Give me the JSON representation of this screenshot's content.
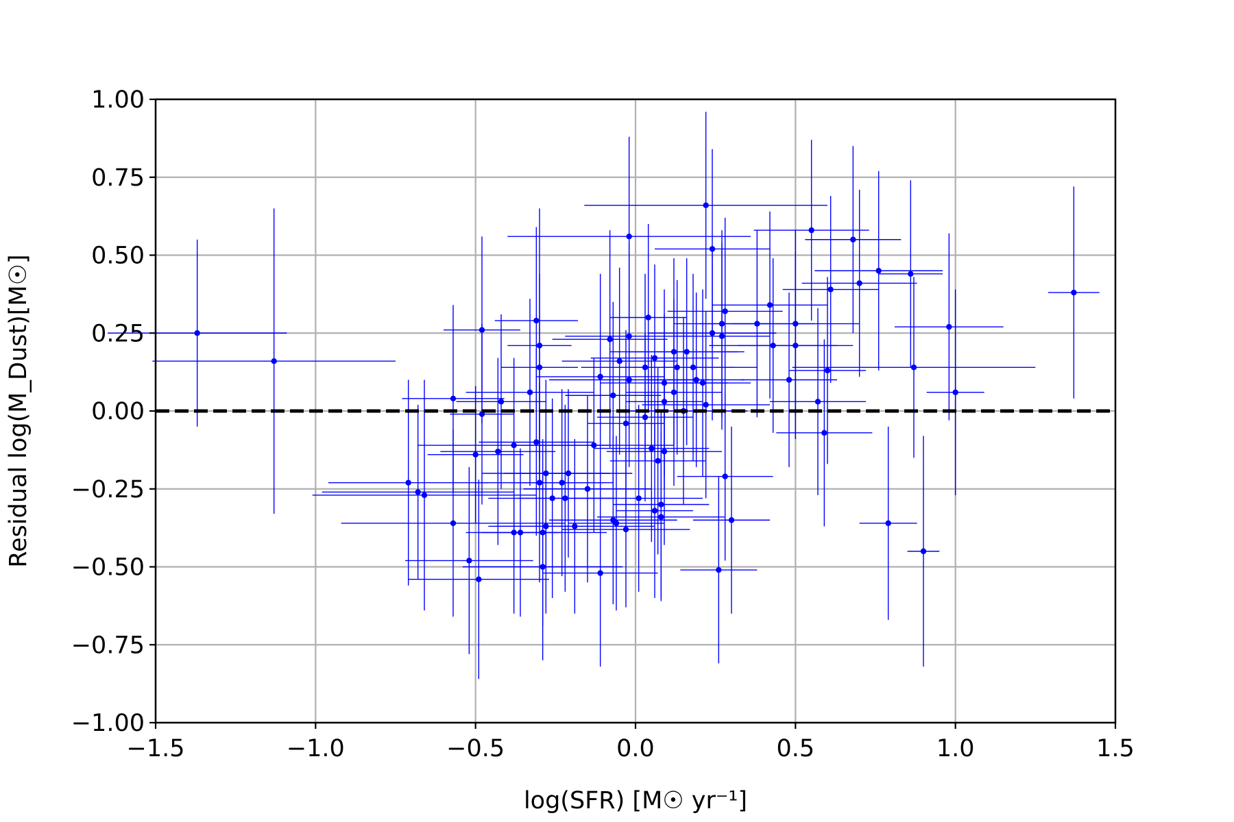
{
  "chart_data": {
    "type": "scatter",
    "xlabel": "log(SFR) [M☉ yr⁻¹]",
    "ylabel": "Residual log(M_Dust)[M☉]",
    "xlim": [
      -1.5,
      1.5
    ],
    "ylim": [
      -1.0,
      1.0
    ],
    "xticks": [
      -1.5,
      -1.0,
      -0.5,
      0.0,
      0.5,
      1.0,
      1.5
    ],
    "yticks": [
      -1.0,
      -0.75,
      -0.5,
      -0.25,
      0.0,
      0.25,
      0.5,
      0.75,
      1.0
    ],
    "xtick_labels": [
      "−1.5",
      "−1.0",
      "−0.5",
      "0.0",
      "0.5",
      "1.0",
      "1.5"
    ],
    "ytick_labels": [
      "−1.00",
      "−0.75",
      "−0.50",
      "−0.25",
      "0.00",
      "0.25",
      "0.50",
      "0.75",
      "1.00"
    ],
    "grid": true,
    "point_color": "#0000ff",
    "reference_line": {
      "y": 0.0,
      "style": "dashed",
      "color": "#000000"
    },
    "points": [
      {
        "x": -1.37,
        "y": 0.25,
        "xerr": 0.28,
        "yerr": 0.3
      },
      {
        "x": -1.13,
        "y": 0.16,
        "xerr": 0.38,
        "yerr": 0.49
      },
      {
        "x": -0.71,
        "y": -0.23,
        "xerr": 0.25,
        "yerr": 0.33
      },
      {
        "x": -0.68,
        "y": -0.26,
        "xerr": 0.3,
        "yerr": 0.28
      },
      {
        "x": -0.66,
        "y": -0.27,
        "xerr": 0.35,
        "yerr": 0.37
      },
      {
        "x": -0.57,
        "y": -0.36,
        "xerr": 0.35,
        "yerr": 0.3
      },
      {
        "x": -0.57,
        "y": 0.04,
        "xerr": 0.16,
        "yerr": 0.3
      },
      {
        "x": -0.52,
        "y": -0.48,
        "xerr": 0.2,
        "yerr": 0.3
      },
      {
        "x": -0.5,
        "y": -0.14,
        "xerr": 0.15,
        "yerr": 0.22
      },
      {
        "x": -0.49,
        "y": -0.54,
        "xerr": 0.22,
        "yerr": 0.32
      },
      {
        "x": -0.48,
        "y": 0.26,
        "xerr": 0.12,
        "yerr": 0.3
      },
      {
        "x": -0.48,
        "y": -0.01,
        "xerr": 0.1,
        "yerr": 0.29
      },
      {
        "x": -0.43,
        "y": -0.13,
        "xerr": 0.18,
        "yerr": 0.3
      },
      {
        "x": -0.42,
        "y": 0.03,
        "xerr": 0.14,
        "yerr": 0.28
      },
      {
        "x": -0.38,
        "y": -0.11,
        "xerr": 0.3,
        "yerr": 0.28
      },
      {
        "x": -0.38,
        "y": -0.39,
        "xerr": 0.15,
        "yerr": 0.26
      },
      {
        "x": -0.36,
        "y": -0.39,
        "xerr": 0.12,
        "yerr": 0.27
      },
      {
        "x": -0.33,
        "y": 0.06,
        "xerr": 0.2,
        "yerr": 0.3
      },
      {
        "x": -0.31,
        "y": 0.29,
        "xerr": 0.13,
        "yerr": 0.3
      },
      {
        "x": -0.31,
        "y": -0.1,
        "xerr": 0.18,
        "yerr": 0.3
      },
      {
        "x": -0.3,
        "y": -0.23,
        "xerr": 0.2,
        "yerr": 0.32
      },
      {
        "x": -0.3,
        "y": 0.21,
        "xerr": 0.1,
        "yerr": 0.44
      },
      {
        "x": -0.3,
        "y": 0.14,
        "xerr": 0.12,
        "yerr": 0.3
      },
      {
        "x": -0.29,
        "y": -0.39,
        "xerr": 0.2,
        "yerr": 0.3
      },
      {
        "x": -0.29,
        "y": -0.5,
        "xerr": 0.25,
        "yerr": 0.3
      },
      {
        "x": -0.28,
        "y": -0.37,
        "xerr": 0.18,
        "yerr": 0.28
      },
      {
        "x": -0.28,
        "y": -0.2,
        "xerr": 0.2,
        "yerr": 0.3
      },
      {
        "x": -0.26,
        "y": -0.28,
        "xerr": 0.2,
        "yerr": 0.32
      },
      {
        "x": -0.23,
        "y": -0.23,
        "xerr": 0.16,
        "yerr": 0.3
      },
      {
        "x": -0.22,
        "y": -0.28,
        "xerr": 0.15,
        "yerr": 0.3
      },
      {
        "x": -0.21,
        "y": -0.2,
        "xerr": 0.2,
        "yerr": 0.27
      },
      {
        "x": -0.19,
        "y": -0.37,
        "xerr": 0.25,
        "yerr": 0.28
      },
      {
        "x": -0.15,
        "y": -0.25,
        "xerr": 0.2,
        "yerr": 0.3
      },
      {
        "x": -0.13,
        "y": -0.11,
        "xerr": 0.25,
        "yerr": 0.28
      },
      {
        "x": -0.11,
        "y": -0.52,
        "xerr": 0.18,
        "yerr": 0.3
      },
      {
        "x": -0.11,
        "y": 0.11,
        "xerr": 0.2,
        "yerr": 0.33
      },
      {
        "x": -0.08,
        "y": 0.23,
        "xerr": 0.18,
        "yerr": 0.35
      },
      {
        "x": -0.07,
        "y": 0.05,
        "xerr": 0.15,
        "yerr": 0.3
      },
      {
        "x": -0.07,
        "y": -0.35,
        "xerr": 0.2,
        "yerr": 0.27
      },
      {
        "x": -0.06,
        "y": -0.36,
        "xerr": 0.15,
        "yerr": 0.28
      },
      {
        "x": -0.05,
        "y": 0.16,
        "xerr": 0.18,
        "yerr": 0.3
      },
      {
        "x": -0.03,
        "y": -0.04,
        "xerr": 0.12,
        "yerr": 0.3
      },
      {
        "x": -0.03,
        "y": -0.38,
        "xerr": 0.2,
        "yerr": 0.25
      },
      {
        "x": -0.02,
        "y": 0.56,
        "xerr": 0.38,
        "yerr": 0.32
      },
      {
        "x": -0.02,
        "y": 0.1,
        "xerr": 0.25,
        "yerr": 0.28
      },
      {
        "x": -0.02,
        "y": 0.24,
        "xerr": 0.2,
        "yerr": 0.3
      },
      {
        "x": 0.01,
        "y": -0.28,
        "xerr": 0.2,
        "yerr": 0.3
      },
      {
        "x": 0.03,
        "y": -0.02,
        "xerr": 0.15,
        "yerr": 0.27
      },
      {
        "x": 0.03,
        "y": 0.14,
        "xerr": 0.2,
        "yerr": 0.3
      },
      {
        "x": 0.04,
        "y": 0.3,
        "xerr": 0.12,
        "yerr": 0.3
      },
      {
        "x": 0.05,
        "y": -0.12,
        "xerr": 0.18,
        "yerr": 0.3
      },
      {
        "x": 0.06,
        "y": -0.32,
        "xerr": 0.12,
        "yerr": 0.28
      },
      {
        "x": 0.06,
        "y": 0.17,
        "xerr": 0.2,
        "yerr": 0.3
      },
      {
        "x": 0.07,
        "y": -0.16,
        "xerr": 0.15,
        "yerr": 0.3
      },
      {
        "x": 0.08,
        "y": -0.34,
        "xerr": 0.2,
        "yerr": 0.27
      },
      {
        "x": 0.08,
        "y": -0.3,
        "xerr": 0.15,
        "yerr": 0.3
      },
      {
        "x": 0.09,
        "y": 0.09,
        "xerr": 0.2,
        "yerr": 0.3
      },
      {
        "x": 0.09,
        "y": -0.13,
        "xerr": 0.18,
        "yerr": 0.3
      },
      {
        "x": 0.09,
        "y": 0.03,
        "xerr": 0.12,
        "yerr": 0.28
      },
      {
        "x": 0.12,
        "y": 0.19,
        "xerr": 0.2,
        "yerr": 0.3
      },
      {
        "x": 0.12,
        "y": 0.06,
        "xerr": 0.15,
        "yerr": 0.3
      },
      {
        "x": 0.13,
        "y": 0.14,
        "xerr": 0.18,
        "yerr": 0.28
      },
      {
        "x": 0.15,
        "y": 0.0,
        "xerr": 0.2,
        "yerr": 0.3
      },
      {
        "x": 0.16,
        "y": 0.19,
        "xerr": 0.18,
        "yerr": 0.3
      },
      {
        "x": 0.18,
        "y": 0.14,
        "xerr": 0.2,
        "yerr": 0.3
      },
      {
        "x": 0.19,
        "y": 0.1,
        "xerr": 0.15,
        "yerr": 0.28
      },
      {
        "x": 0.21,
        "y": 0.09,
        "xerr": 0.15,
        "yerr": 0.3
      },
      {
        "x": 0.22,
        "y": 0.66,
        "xerr": 0.38,
        "yerr": 0.3
      },
      {
        "x": 0.22,
        "y": 0.02,
        "xerr": 0.2,
        "yerr": 0.3
      },
      {
        "x": 0.24,
        "y": 0.52,
        "xerr": 0.18,
        "yerr": 0.32
      },
      {
        "x": 0.24,
        "y": 0.25,
        "xerr": 0.2,
        "yerr": 0.28
      },
      {
        "x": 0.26,
        "y": -0.51,
        "xerr": 0.12,
        "yerr": 0.3
      },
      {
        "x": 0.27,
        "y": 0.28,
        "xerr": 0.15,
        "yerr": 0.3
      },
      {
        "x": 0.27,
        "y": 0.24,
        "xerr": 0.15,
        "yerr": 0.3
      },
      {
        "x": 0.28,
        "y": 0.32,
        "xerr": 0.18,
        "yerr": 0.3
      },
      {
        "x": 0.28,
        "y": -0.21,
        "xerr": 0.15,
        "yerr": 0.27
      },
      {
        "x": 0.3,
        "y": -0.35,
        "xerr": 0.12,
        "yerr": 0.3
      },
      {
        "x": 0.38,
        "y": 0.28,
        "xerr": 0.18,
        "yerr": 0.3
      },
      {
        "x": 0.42,
        "y": 0.34,
        "xerr": 0.18,
        "yerr": 0.3
      },
      {
        "x": 0.43,
        "y": 0.21,
        "xerr": 0.2,
        "yerr": 0.28
      },
      {
        "x": 0.48,
        "y": 0.1,
        "xerr": 0.15,
        "yerr": 0.28
      },
      {
        "x": 0.5,
        "y": 0.21,
        "xerr": 0.18,
        "yerr": 0.3
      },
      {
        "x": 0.5,
        "y": 0.28,
        "xerr": 0.2,
        "yerr": 0.3
      },
      {
        "x": 0.55,
        "y": 0.58,
        "xerr": 0.18,
        "yerr": 0.29
      },
      {
        "x": 0.57,
        "y": 0.03,
        "xerr": 0.15,
        "yerr": 0.3
      },
      {
        "x": 0.59,
        "y": -0.07,
        "xerr": 0.15,
        "yerr": 0.3
      },
      {
        "x": 0.6,
        "y": 0.13,
        "xerr": 0.12,
        "yerr": 0.3
      },
      {
        "x": 0.61,
        "y": 0.39,
        "xerr": 0.15,
        "yerr": 0.3
      },
      {
        "x": 0.68,
        "y": 0.55,
        "xerr": 0.15,
        "yerr": 0.3
      },
      {
        "x": 0.7,
        "y": 0.41,
        "xerr": 0.18,
        "yerr": 0.3
      },
      {
        "x": 0.76,
        "y": 0.45,
        "xerr": 0.2,
        "yerr": 0.32
      },
      {
        "x": 0.79,
        "y": -0.36,
        "xerr": 0.09,
        "yerr": 0.31
      },
      {
        "x": 0.86,
        "y": 0.44,
        "xerr": 0.1,
        "yerr": 0.3
      },
      {
        "x": 0.87,
        "y": 0.14,
        "xerr": 0.38,
        "yerr": 0.29
      },
      {
        "x": 0.9,
        "y": -0.45,
        "xerr": 0.05,
        "yerr": 0.37
      },
      {
        "x": 0.98,
        "y": 0.27,
        "xerr": 0.17,
        "yerr": 0.3
      },
      {
        "x": 1.0,
        "y": 0.06,
        "xerr": 0.09,
        "yerr": 0.33
      },
      {
        "x": 1.37,
        "y": 0.38,
        "xerr": 0.08,
        "yerr": 0.34
      }
    ]
  }
}
